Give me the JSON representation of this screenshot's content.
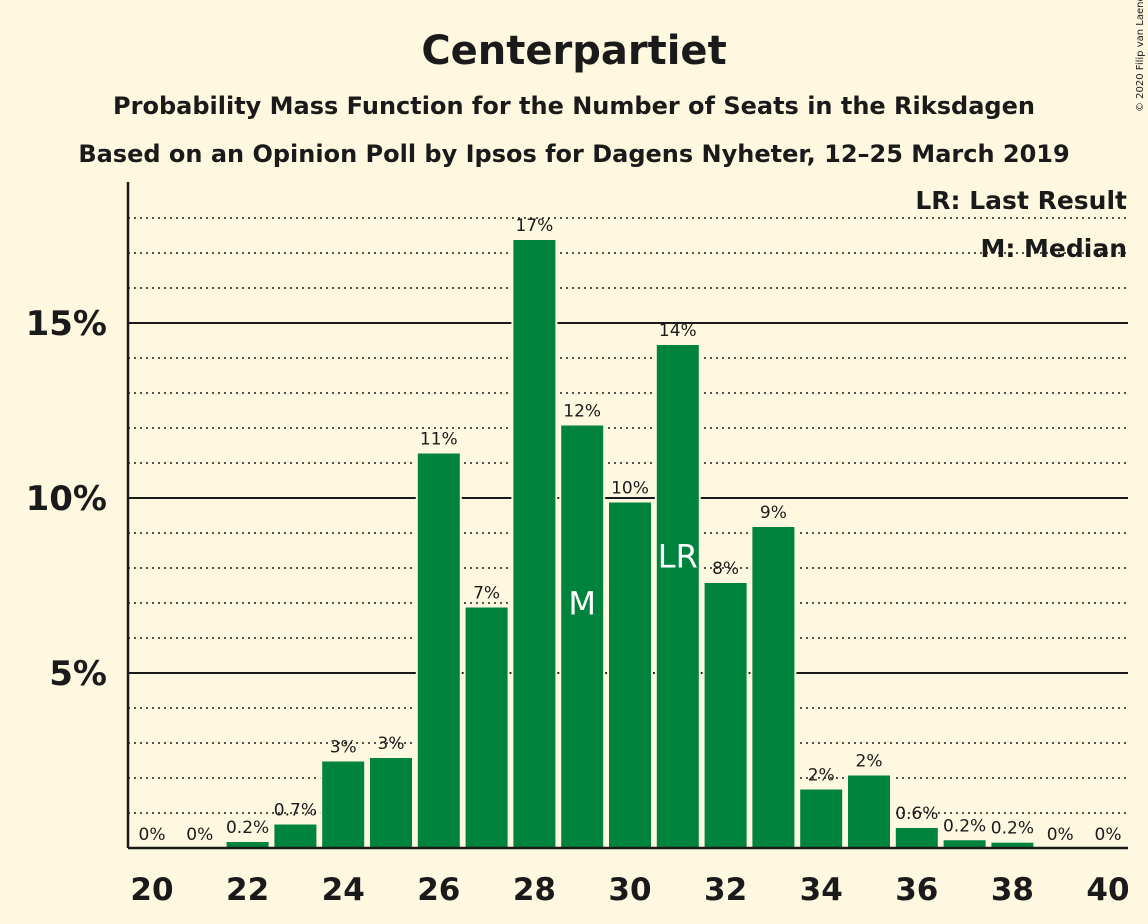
{
  "chart_data": {
    "type": "bar",
    "title": "Centerpartiet",
    "subtitle": "Probability Mass Function for the Number of Seats in the Riksdagen",
    "subtitle2": "Based on an Opinion Poll by Ipsos for Dagens Nyheter, 12–25 March 2019",
    "copyright": "© 2020 Filip van Laenen",
    "legend": [
      "LR: Last Result",
      "M: Median"
    ],
    "legend_position": "top-right",
    "bar_color": "#00843d",
    "x": [
      20,
      21,
      22,
      23,
      24,
      25,
      26,
      27,
      28,
      29,
      30,
      31,
      32,
      33,
      34,
      35,
      36,
      37,
      38,
      39,
      40
    ],
    "values": [
      0,
      0,
      0.2,
      0.7,
      2.5,
      2.6,
      11.3,
      6.9,
      17.4,
      12.1,
      9.9,
      14.4,
      7.6,
      9.2,
      1.7,
      2.1,
      0.6,
      0.25,
      0.18,
      0,
      0
    ],
    "data_labels": [
      "0%",
      "0%",
      "0.2%",
      "0.7%",
      "3%",
      "3%",
      "11%",
      "7%",
      "17%",
      "12%",
      "10%",
      "14%",
      "8%",
      "9%",
      "2%",
      "2%",
      "0.6%",
      "0.2%",
      "0.2%",
      "0%",
      "0%"
    ],
    "x_tick_labels": [
      "20",
      "22",
      "24",
      "26",
      "28",
      "30",
      "32",
      "34",
      "36",
      "38",
      "40"
    ],
    "x_ticks": [
      20,
      22,
      24,
      26,
      28,
      30,
      32,
      34,
      36,
      38,
      40
    ],
    "y_ticks": [
      5,
      10,
      15
    ],
    "y_tick_labels": [
      "5%",
      "10%",
      "15%"
    ],
    "ylim": [
      0,
      19
    ],
    "gridlines_dotted_every": 1,
    "median_seat": 29,
    "median_label": "M",
    "last_result_seat": 31,
    "last_result_label": "LR"
  }
}
